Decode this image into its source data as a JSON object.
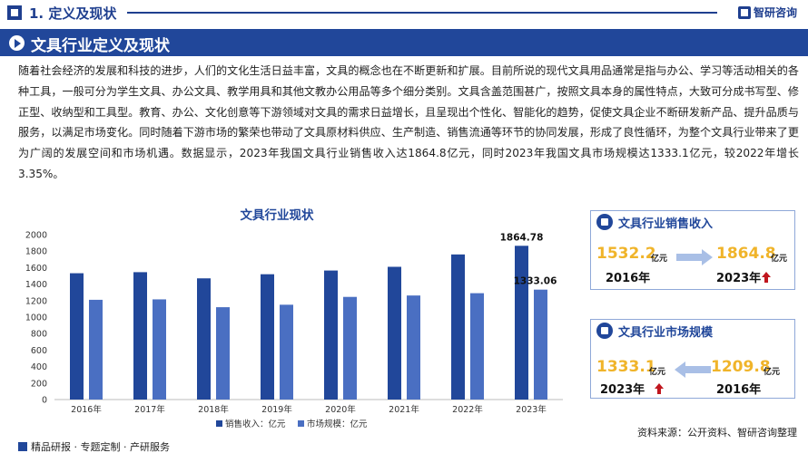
{
  "header": {
    "section_title": "1. 定义及现状",
    "brand": "智研咨询"
  },
  "banner": {
    "title": "文具行业定义及现状"
  },
  "body_text": "随着社会经济的发展和科技的进步，人们的文化生活日益丰富，文具的概念也在不断更新和扩展。目前所说的现代文具用品通常是指与办公、学习等活动相关的各种工具，一般可分为学生文具、办公文具、教学用具和其他文教办公用品等多个细分类别。文具含盖范围甚广，按照文具本身的属性特点，大致可分成书写型、修正型、收纳型和工具型。教育、办公、文化创意等下游领域对文具的需求日益增长，且呈现出个性化、智能化的趋势，促使文具企业不断研发新产品、提升品质与服务，以满足市场变化。同时随着下游市场的繁荣也带动了文具原材料供应、生产制造、销售流通等环节的协同发展，形成了良性循环，为整个文具行业带来了更为广阔的发展空间和市场机遇。数据显示，2023年我国文具行业销售收入达1864.8亿元，同时2023年我国文具市场规模达1333.1亿元，较2022年增长3.35%。",
  "chart_data": {
    "type": "bar",
    "title": "文具行业现状",
    "categories": [
      "2016年",
      "2017年",
      "2018年",
      "2019年",
      "2020年",
      "2021年",
      "2022年",
      "2023年"
    ],
    "series": [
      {
        "name": "销售收入：亿元",
        "values": [
          1532.2,
          1545,
          1470,
          1520,
          1565,
          1610,
          1760,
          1864.78
        ],
        "color": "#21479a"
      },
      {
        "name": "市场规模：亿元",
        "values": [
          1209.8,
          1215,
          1120,
          1150,
          1245,
          1262,
          1290,
          1333.06
        ],
        "color": "#4a6fc2"
      }
    ],
    "yticks": [
      "0",
      "200",
      "400",
      "600",
      "800",
      "1000",
      "1200",
      "1400",
      "1600",
      "1800",
      "2000"
    ],
    "ylim": [
      0,
      2000
    ],
    "data_labels": [
      {
        "series": 0,
        "index": 7,
        "text": "1864.78"
      },
      {
        "series": 1,
        "index": 7,
        "text": "1333.06"
      }
    ],
    "legend_position": "bottom",
    "grid": false
  },
  "cards": {
    "sales": {
      "title": "文具行业销售收入",
      "from_value": "1532.2",
      "from_unit": "亿元",
      "from_year": "2016年",
      "to_value": "1864.8",
      "to_unit": "亿元",
      "to_year": "2023年"
    },
    "market": {
      "title": "文具行业市场规模",
      "from_value": "1333.1",
      "from_unit": "亿元",
      "from_year": "2023年",
      "to_value": "1209.8",
      "to_unit": "亿元",
      "to_year": "2016年"
    }
  },
  "footer": {
    "left": "精品研报 · 专题定制 · 产研服务",
    "source": "资料来源：公开资料、智研咨询整理"
  },
  "colors": {
    "primary": "#21479a",
    "accent": "#f0b42a",
    "up": "#c0161e"
  }
}
